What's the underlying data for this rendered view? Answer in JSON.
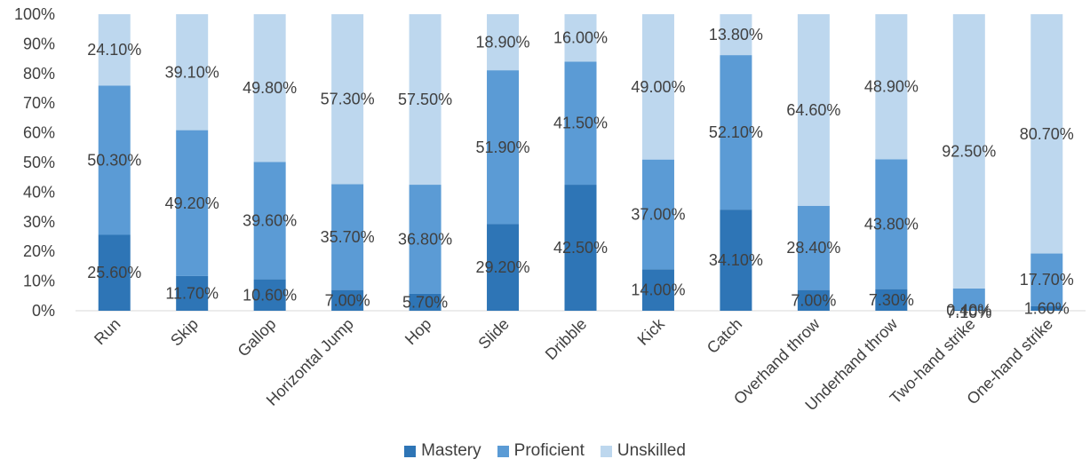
{
  "chart_data": {
    "type": "bar",
    "stacked": true,
    "categories": [
      "Run",
      "Skip",
      "Gallop",
      "Horizontal Jump",
      "Hop",
      "Slide",
      "Dribble",
      "Kick",
      "Catch",
      "Overhand throw",
      "Underhand throw",
      "Two-hand strike",
      "One-hand strike"
    ],
    "series": [
      {
        "name": "Mastery",
        "color": "#2e75b6",
        "values": [
          25.6,
          11.7,
          10.6,
          7.0,
          5.7,
          29.2,
          42.5,
          14.0,
          34.1,
          7.0,
          7.3,
          0.4,
          1.6
        ],
        "labels": [
          "25.60%",
          "11.70%",
          "10.60%",
          "7.00%",
          "5.70%",
          "29.20%",
          "42.50%",
          "14.00%",
          "34.10%",
          "7.00%",
          "7.30%",
          "0.40%",
          "1.60%"
        ]
      },
      {
        "name": "Proficient",
        "color": "#5b9bd5",
        "values": [
          50.3,
          49.2,
          39.6,
          35.7,
          36.8,
          51.9,
          41.5,
          37.0,
          52.1,
          28.4,
          43.8,
          7.1,
          17.7
        ],
        "labels": [
          "50.30%",
          "49.20%",
          "39.60%",
          "35.70%",
          "36.80%",
          "51.90%",
          "41.50%",
          "37.00%",
          "52.10%",
          "28.40%",
          "43.80%",
          "7.10%",
          "17.70%"
        ]
      },
      {
        "name": "Unskilled",
        "color": "#bdd7ee",
        "values": [
          24.1,
          39.1,
          49.8,
          57.3,
          57.5,
          18.9,
          16.0,
          49.0,
          13.8,
          64.6,
          48.9,
          92.5,
          80.7
        ],
        "labels": [
          "24.10%",
          "39.10%",
          "49.80%",
          "57.30%",
          "57.50%",
          "18.90%",
          "16.00%",
          "49.00%",
          "13.80%",
          "64.60%",
          "48.90%",
          "92.50%",
          "80.70%"
        ]
      }
    ],
    "yticks": [
      "0%",
      "10%",
      "20%",
      "30%",
      "40%",
      "50%",
      "60%",
      "70%",
      "80%",
      "90%",
      "100%"
    ],
    "ylim": [
      0,
      100
    ],
    "grid": false,
    "legend": "bottom"
  }
}
